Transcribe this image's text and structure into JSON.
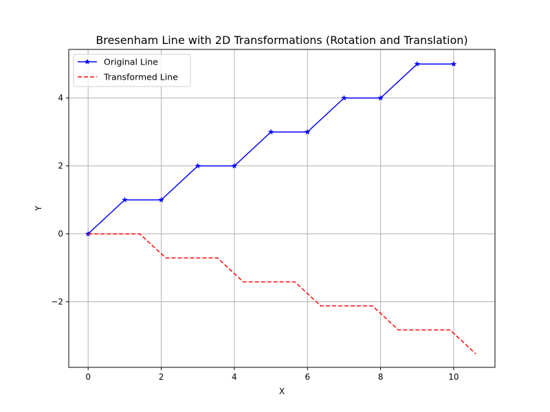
{
  "chart_data": {
    "type": "line",
    "title": "Bresenham Line with 2D Transformations (Rotation and Translation)",
    "xlabel": "X",
    "ylabel": "Y",
    "xlim": [
      -0.53,
      11.13
    ],
    "ylim": [
      -3.93,
      5.43
    ],
    "xticks": [
      0,
      2,
      4,
      6,
      8,
      10
    ],
    "yticks": [
      -2,
      0,
      2,
      4
    ],
    "grid": true,
    "legend_position": "upper-left",
    "series": [
      {
        "name": "Original Line",
        "color": "#0000ff",
        "linestyle": "solid",
        "marker": "star",
        "x": [
          0,
          1,
          2,
          3,
          4,
          5,
          6,
          7,
          8,
          9,
          10
        ],
        "y": [
          0,
          1,
          1,
          2,
          2,
          3,
          3,
          4,
          4,
          5,
          5
        ]
      },
      {
        "name": "Transformed Line",
        "color": "#ff0000",
        "linestyle": "dashed",
        "marker": "none",
        "x": [
          0,
          1.414,
          2.121,
          3.536,
          4.243,
          5.657,
          6.364,
          7.778,
          8.485,
          9.899,
          10.607
        ],
        "y": [
          0,
          0,
          -0.707,
          -0.707,
          -1.414,
          -1.414,
          -2.121,
          -2.121,
          -2.828,
          -2.828,
          -3.536
        ]
      }
    ]
  }
}
